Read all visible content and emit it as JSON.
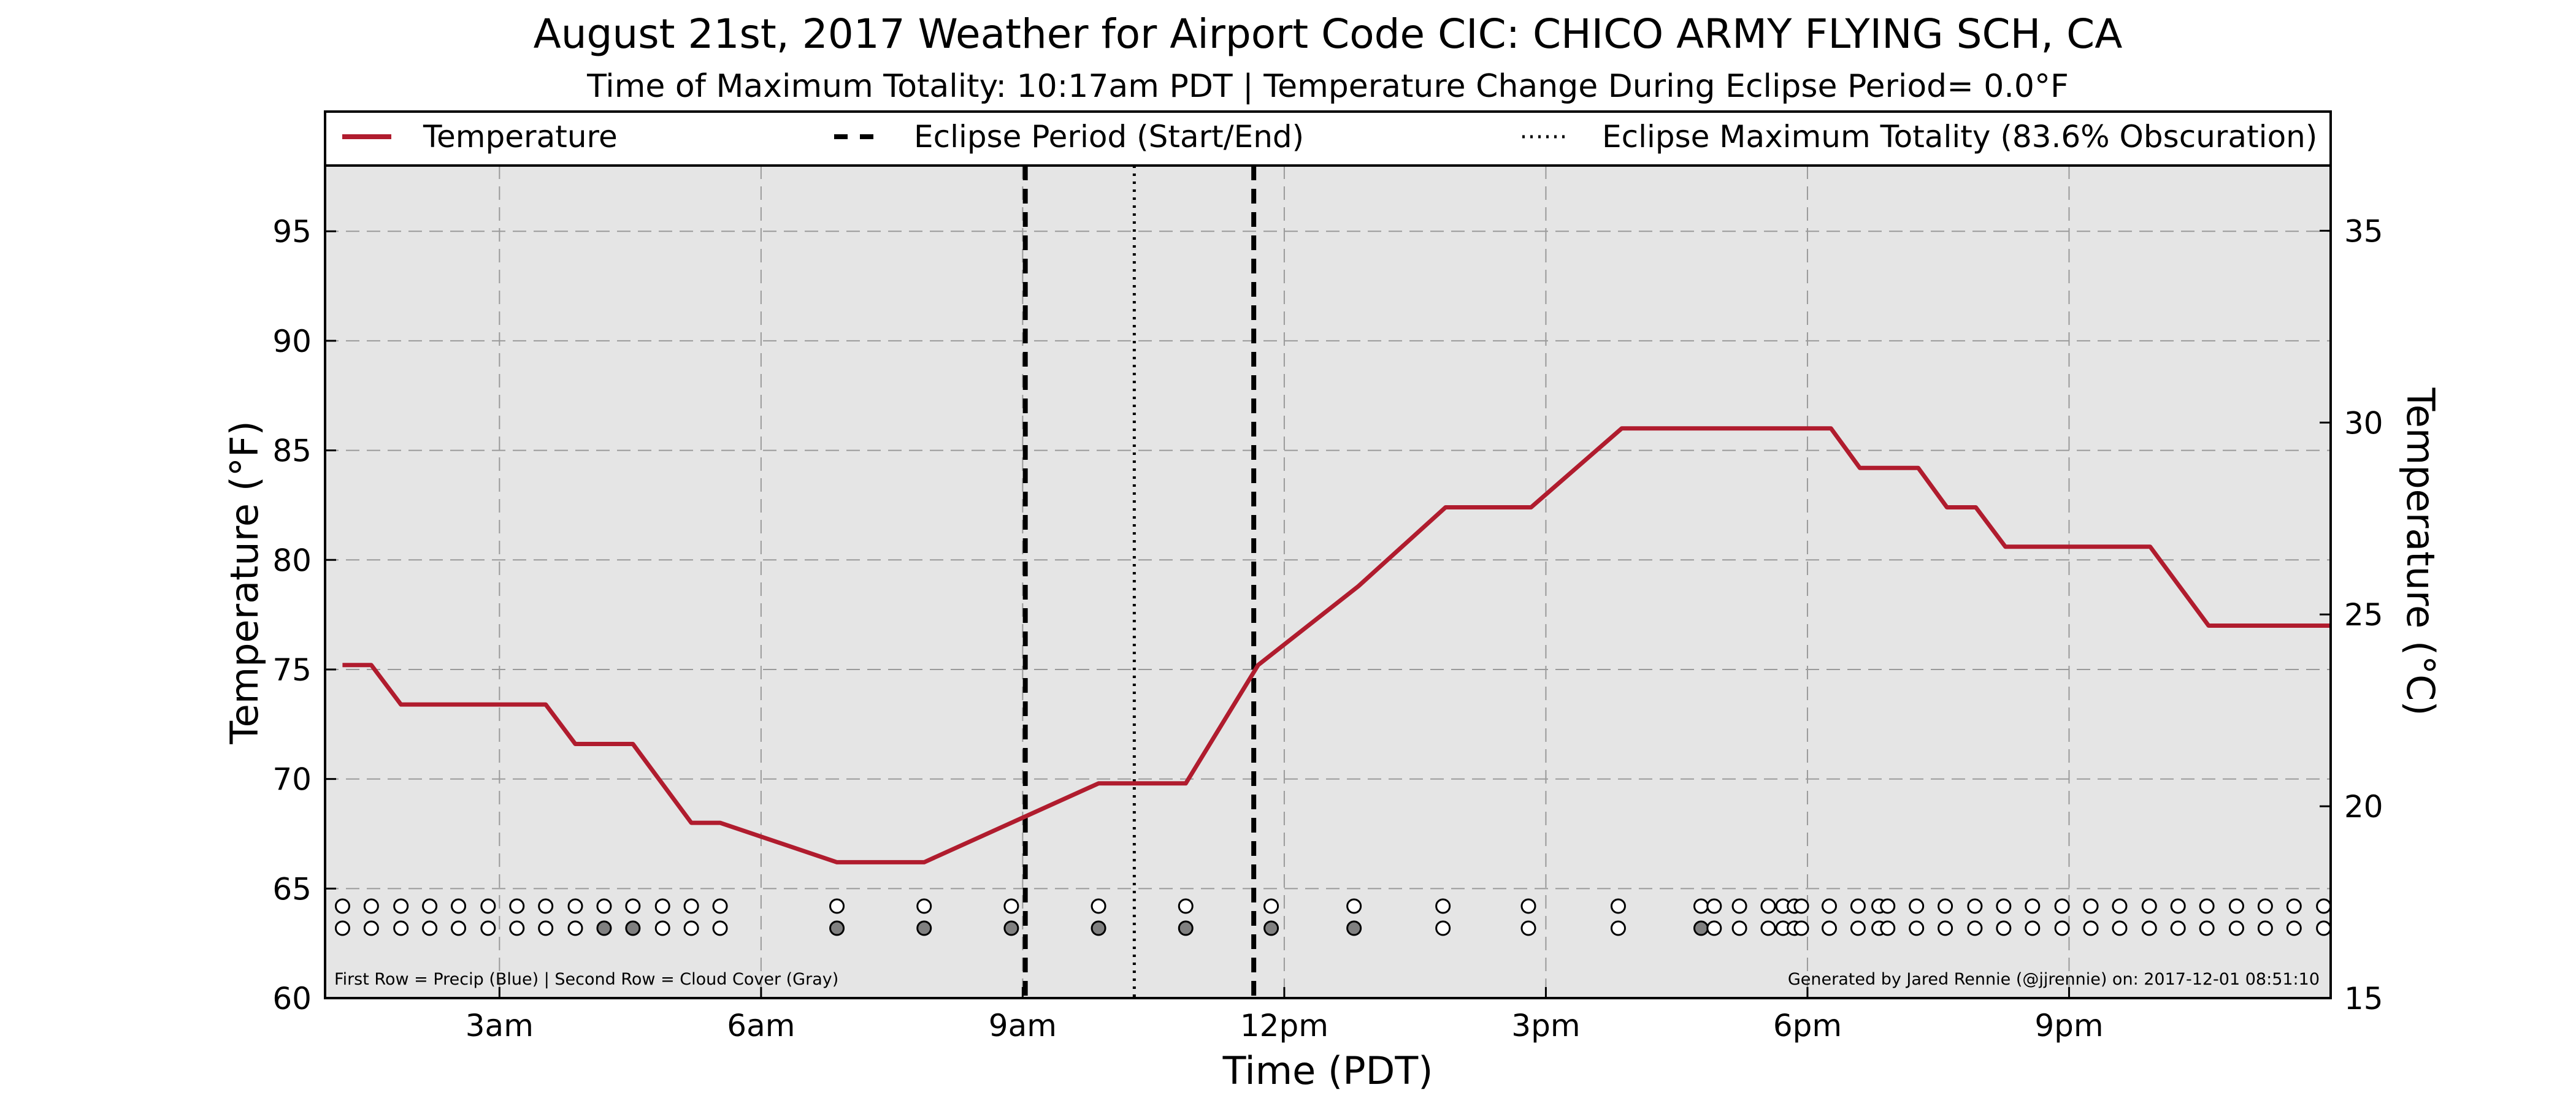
{
  "chart_data": {
    "type": "line",
    "title": "August 21st, 2017 Weather for Airport Code CIC: CHICO ARMY FLYING SCH, CA",
    "subtitle": "Time of Maximum Totality: 10:17am PDT | Temperature Change During Eclipse Period= 0.0°F",
    "xlabel": "Time (PDT)",
    "ylabel": "Temperature (°F)",
    "ylabel_right": "Temperature (°C)",
    "x_unit": "hours after midnight PDT",
    "xlim": [
      1.0,
      24.0
    ],
    "ylim": [
      60,
      98
    ],
    "ylim_right": [
      15,
      36.7
    ],
    "x_ticks": [
      {
        "x": 3,
        "label": "3am"
      },
      {
        "x": 6,
        "label": "6am"
      },
      {
        "x": 9,
        "label": "9am"
      },
      {
        "x": 12,
        "label": "12pm"
      },
      {
        "x": 15,
        "label": "3pm"
      },
      {
        "x": 18,
        "label": "6pm"
      },
      {
        "x": 21,
        "label": "9pm"
      }
    ],
    "y_ticks": [
      60,
      65,
      70,
      75,
      80,
      85,
      90,
      95
    ],
    "y_ticks_right": [
      15,
      20,
      25,
      30,
      35
    ],
    "grid": true,
    "legend_position": "top, above plot",
    "legend": [
      {
        "label": "Temperature",
        "style": "solid",
        "color": "#b01c2e"
      },
      {
        "label": "Eclipse Period (Start/End)",
        "style": "dashed",
        "color": "#000000"
      },
      {
        "label": "Eclipse Maximum Totality (83.6% Obscuration)",
        "style": "dotted",
        "color": "#000000"
      }
    ],
    "series": [
      {
        "name": "Temperature",
        "color": "#b01c2e",
        "points": [
          [
            1.2,
            75.2
          ],
          [
            1.53,
            75.2
          ],
          [
            1.87,
            73.4
          ],
          [
            2.2,
            73.4
          ],
          [
            2.53,
            73.4
          ],
          [
            2.87,
            73.4
          ],
          [
            3.2,
            73.4
          ],
          [
            3.53,
            73.4
          ],
          [
            3.87,
            71.6
          ],
          [
            4.2,
            71.6
          ],
          [
            4.53,
            71.6
          ],
          [
            5.2,
            68.0
          ],
          [
            5.53,
            68.0
          ],
          [
            6.87,
            66.2
          ],
          [
            7.87,
            66.2
          ],
          [
            8.87,
            68.0
          ],
          [
            9.87,
            69.8
          ],
          [
            10.87,
            69.8
          ],
          [
            11.7,
            75.2
          ],
          [
            12.85,
            78.8
          ],
          [
            13.85,
            82.4
          ],
          [
            14.83,
            82.4
          ],
          [
            15.87,
            86.0
          ],
          [
            17.87,
            86.0
          ],
          [
            18.27,
            86.0
          ],
          [
            18.6,
            84.2
          ],
          [
            19.27,
            84.2
          ],
          [
            19.6,
            82.4
          ],
          [
            19.93,
            82.4
          ],
          [
            20.27,
            80.6
          ],
          [
            21.93,
            80.6
          ],
          [
            22.6,
            77.0
          ],
          [
            24.0,
            77.0
          ]
        ]
      }
    ],
    "eclipse_start": 9.03,
    "eclipse_end": 11.65,
    "eclipse_max": 10.28,
    "obs_rows": [
      {
        "row": 1,
        "label": "Precip",
        "color": "#0000ff"
      },
      {
        "row": 2,
        "label": "Cloud Cover",
        "color": "#808080"
      }
    ],
    "observations": [
      {
        "x": 1.2,
        "precip": 0,
        "cloud": 0
      },
      {
        "x": 1.53,
        "precip": 0,
        "cloud": 0
      },
      {
        "x": 1.87,
        "precip": 0,
        "cloud": 0
      },
      {
        "x": 2.2,
        "precip": 0,
        "cloud": 0
      },
      {
        "x": 2.53,
        "precip": 0,
        "cloud": 0
      },
      {
        "x": 2.87,
        "precip": 0,
        "cloud": 0
      },
      {
        "x": 3.2,
        "precip": 0,
        "cloud": 0
      },
      {
        "x": 3.53,
        "precip": 0,
        "cloud": 0
      },
      {
        "x": 3.87,
        "precip": 0,
        "cloud": 0
      },
      {
        "x": 4.2,
        "precip": 0,
        "cloud": 1
      },
      {
        "x": 4.53,
        "precip": 0,
        "cloud": 1
      },
      {
        "x": 4.87,
        "precip": 0,
        "cloud": 0
      },
      {
        "x": 5.2,
        "precip": 0,
        "cloud": 0
      },
      {
        "x": 5.53,
        "precip": 0,
        "cloud": 0
      },
      {
        "x": 6.87,
        "precip": 0,
        "cloud": 1
      },
      {
        "x": 7.87,
        "precip": 0,
        "cloud": 1
      },
      {
        "x": 8.87,
        "precip": 0,
        "cloud": 1
      },
      {
        "x": 9.87,
        "precip": 0,
        "cloud": 1
      },
      {
        "x": 10.87,
        "precip": 0,
        "cloud": 1
      },
      {
        "x": 11.85,
        "precip": 0,
        "cloud": 1
      },
      {
        "x": 12.8,
        "precip": 0,
        "cloud": 1
      },
      {
        "x": 13.82,
        "precip": 0,
        "cloud": 0
      },
      {
        "x": 14.8,
        "precip": 0,
        "cloud": 0
      },
      {
        "x": 15.83,
        "precip": 0,
        "cloud": 0
      },
      {
        "x": 16.78,
        "precip": 0,
        "cloud": 1
      },
      {
        "x": 16.93,
        "precip": 0,
        "cloud": 0
      },
      {
        "x": 17.22,
        "precip": 0,
        "cloud": 0
      },
      {
        "x": 17.55,
        "precip": 0,
        "cloud": 0
      },
      {
        "x": 17.72,
        "precip": 0,
        "cloud": 0
      },
      {
        "x": 17.85,
        "precip": 0,
        "cloud": 0
      },
      {
        "x": 17.93,
        "precip": 0,
        "cloud": 0
      },
      {
        "x": 18.25,
        "precip": 0,
        "cloud": 0
      },
      {
        "x": 18.58,
        "precip": 0,
        "cloud": 0
      },
      {
        "x": 18.82,
        "precip": 0,
        "cloud": 0
      },
      {
        "x": 18.92,
        "precip": 0,
        "cloud": 0
      },
      {
        "x": 19.25,
        "precip": 0,
        "cloud": 0
      },
      {
        "x": 19.58,
        "precip": 0,
        "cloud": 0
      },
      {
        "x": 19.92,
        "precip": 0,
        "cloud": 0
      },
      {
        "x": 20.25,
        "precip": 0,
        "cloud": 0
      },
      {
        "x": 20.58,
        "precip": 0,
        "cloud": 0
      },
      {
        "x": 20.92,
        "precip": 0,
        "cloud": 0
      },
      {
        "x": 21.25,
        "precip": 0,
        "cloud": 0
      },
      {
        "x": 21.58,
        "precip": 0,
        "cloud": 0
      },
      {
        "x": 21.92,
        "precip": 0,
        "cloud": 0
      },
      {
        "x": 22.25,
        "precip": 0,
        "cloud": 0
      },
      {
        "x": 22.58,
        "precip": 0,
        "cloud": 0
      },
      {
        "x": 22.92,
        "precip": 0,
        "cloud": 0
      },
      {
        "x": 23.25,
        "precip": 0,
        "cloud": 0
      },
      {
        "x": 23.58,
        "precip": 0,
        "cloud": 0
      },
      {
        "x": 23.92,
        "precip": 0,
        "cloud": 0
      }
    ],
    "footnote_left": "First Row = Precip (Blue) | Second Row = Cloud Cover (Gray)",
    "footnote_right": "Generated by Jared Rennie (@jjrennie) on: 2017-12-01 08:51:10"
  }
}
